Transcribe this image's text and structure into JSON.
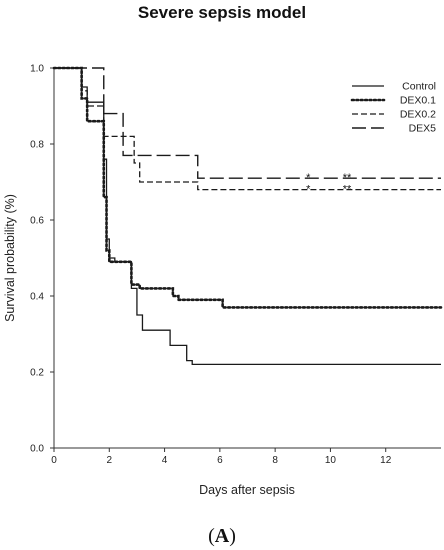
{
  "chart_data": {
    "type": "line",
    "step": true,
    "title": "Severe sepsis model",
    "xlabel": "Days after sepsis",
    "ylabel": "Survival probability (%)",
    "xlim": [
      0,
      14
    ],
    "ylim": [
      0.0,
      1.0
    ],
    "xticks": [
      0,
      2,
      4,
      6,
      8,
      10,
      12
    ],
    "yticks": [
      0.0,
      0.2,
      0.4,
      0.6,
      0.8,
      1.0
    ],
    "xtick_labels": [
      "0",
      "2",
      "4",
      "6",
      "8",
      "10",
      "12"
    ],
    "ytick_labels": [
      "0.0",
      "0.2",
      "0.4",
      "0.6",
      "0.8",
      "1.0"
    ],
    "grid": false,
    "legend_position": "top-right",
    "panel_label": "A",
    "series": [
      {
        "name": "Control",
        "dash": "solid",
        "points": [
          [
            0,
            1.0
          ],
          [
            1.0,
            1.0
          ],
          [
            1.0,
            0.95
          ],
          [
            1.2,
            0.95
          ],
          [
            1.2,
            0.91
          ],
          [
            1.8,
            0.91
          ],
          [
            1.8,
            0.76
          ],
          [
            1.9,
            0.76
          ],
          [
            1.9,
            0.55
          ],
          [
            2.0,
            0.55
          ],
          [
            2.0,
            0.5
          ],
          [
            2.2,
            0.5
          ],
          [
            2.2,
            0.49
          ],
          [
            2.8,
            0.49
          ],
          [
            2.8,
            0.42
          ],
          [
            3.0,
            0.42
          ],
          [
            3.0,
            0.35
          ],
          [
            3.2,
            0.35
          ],
          [
            3.2,
            0.31
          ],
          [
            4.2,
            0.31
          ],
          [
            4.2,
            0.27
          ],
          [
            4.8,
            0.27
          ],
          [
            4.8,
            0.23
          ],
          [
            5.0,
            0.23
          ],
          [
            5.0,
            0.22
          ],
          [
            14.0,
            0.22
          ]
        ]
      },
      {
        "name": "DEX0.1",
        "dash": "dotted",
        "points": [
          [
            0,
            1.0
          ],
          [
            1.0,
            1.0
          ],
          [
            1.0,
            0.92
          ],
          [
            1.2,
            0.92
          ],
          [
            1.2,
            0.86
          ],
          [
            1.8,
            0.86
          ],
          [
            1.8,
            0.66
          ],
          [
            1.9,
            0.66
          ],
          [
            1.9,
            0.52
          ],
          [
            2.0,
            0.52
          ],
          [
            2.0,
            0.49
          ],
          [
            2.8,
            0.49
          ],
          [
            2.8,
            0.43
          ],
          [
            3.1,
            0.43
          ],
          [
            3.1,
            0.42
          ],
          [
            4.3,
            0.42
          ],
          [
            4.3,
            0.4
          ],
          [
            4.5,
            0.4
          ],
          [
            4.5,
            0.39
          ],
          [
            6.1,
            0.39
          ],
          [
            6.1,
            0.37
          ],
          [
            14.0,
            0.37
          ]
        ]
      },
      {
        "name": "DEX0.2",
        "dash": "short-dash",
        "points": [
          [
            0,
            1.0
          ],
          [
            1.0,
            1.0
          ],
          [
            1.0,
            0.94
          ],
          [
            1.2,
            0.94
          ],
          [
            1.2,
            0.9
          ],
          [
            1.8,
            0.9
          ],
          [
            1.8,
            0.82
          ],
          [
            2.9,
            0.82
          ],
          [
            2.9,
            0.75
          ],
          [
            3.1,
            0.75
          ],
          [
            3.1,
            0.7
          ],
          [
            5.2,
            0.7
          ],
          [
            5.2,
            0.68
          ],
          [
            14.0,
            0.68
          ]
        ]
      },
      {
        "name": "DEX5",
        "dash": "long-dash",
        "points": [
          [
            0,
            1.0
          ],
          [
            1.8,
            1.0
          ],
          [
            1.8,
            0.88
          ],
          [
            2.5,
            0.88
          ],
          [
            2.5,
            0.77
          ],
          [
            5.2,
            0.77
          ],
          [
            5.2,
            0.71
          ],
          [
            14.0,
            0.71
          ]
        ]
      }
    ],
    "annotations": [
      {
        "text": "*",
        "x": 9.2,
        "y": 0.705
      },
      {
        "text": "**",
        "x": 10.6,
        "y": 0.705
      },
      {
        "text": "*",
        "x": 9.2,
        "y": 0.675
      },
      {
        "text": "**",
        "x": 10.6,
        "y": 0.675
      }
    ]
  }
}
